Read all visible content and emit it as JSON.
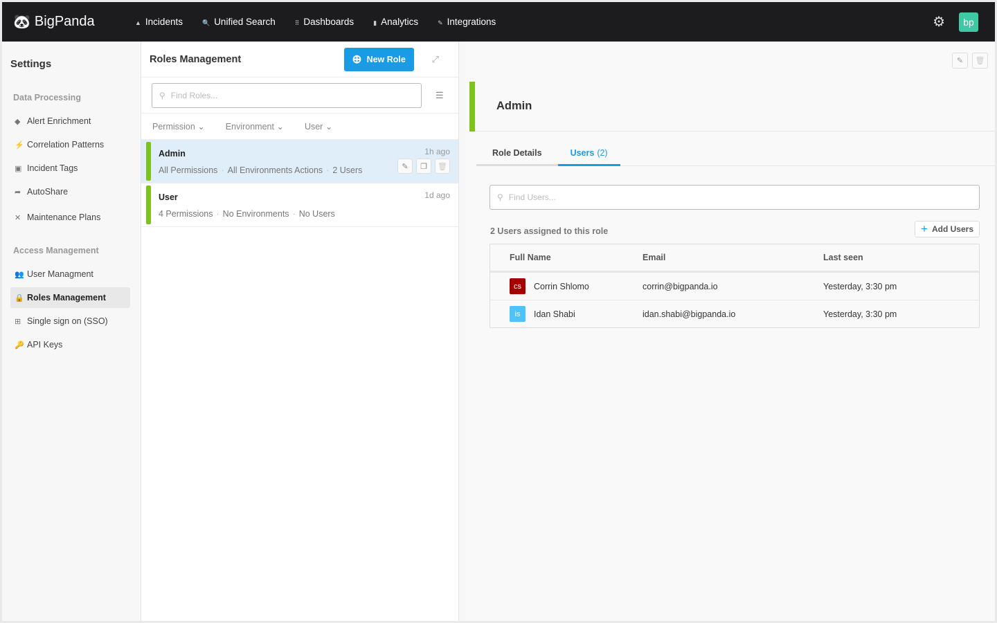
{
  "app": {
    "brand": "BigPanda",
    "avatar": "bp",
    "avatar_color": "#3cc9a3"
  },
  "nav": [
    {
      "label": "Incidents",
      "icon": "triangle-icon"
    },
    {
      "label": "Unified Search",
      "icon": "search-icon"
    },
    {
      "label": "Dashboards",
      "icon": "grid-icon"
    },
    {
      "label": "Analytics",
      "icon": "bar-chart-icon"
    },
    {
      "label": "Integrations",
      "icon": "plug-icon"
    }
  ],
  "sidebar": {
    "title": "Settings",
    "sections": [
      {
        "label": "Data Processing",
        "items": [
          {
            "label": "Alert Enrichment",
            "icon": "tag-icon"
          },
          {
            "label": "Correlation Patterns",
            "icon": "bolt-icon"
          },
          {
            "label": "Incident Tags",
            "icon": "square-icon"
          },
          {
            "label": "AutoShare",
            "icon": "share-icon"
          },
          {
            "label": "Maintenance Plans",
            "icon": "tools-icon"
          }
        ]
      },
      {
        "label": "Access Management",
        "items": [
          {
            "label": "User Managment",
            "icon": "users-icon"
          },
          {
            "label": "Roles Management",
            "icon": "lock-icon",
            "active": true
          },
          {
            "label": "Single sign on (SSO)",
            "icon": "sign-in-icon"
          },
          {
            "label": "API Keys",
            "icon": "key-icon"
          }
        ]
      }
    ]
  },
  "roles": {
    "title": "Roles Management",
    "new_label": "New Role",
    "search_placeholder": "Find Roles...",
    "filters": [
      "Permission",
      "Environment",
      "User"
    ],
    "items": [
      {
        "name": "Admin",
        "time": "1h ago",
        "meta": [
          "All Permissions",
          "All Environments Actions",
          "2 Users"
        ]
      },
      {
        "name": "User",
        "time": "1d ago",
        "meta": [
          "4 Permissions",
          "No Environments",
          "No Users"
        ]
      }
    ]
  },
  "detail": {
    "title": "Admin",
    "tabs": {
      "details": "Role Details",
      "users": "Users",
      "users_count": "(2)"
    },
    "search_placeholder": "Find Users...",
    "assigned": "2 Users assigned to this role",
    "add_label": "Add Users",
    "columns": [
      "Full Name",
      "Email",
      "Last seen"
    ],
    "users": [
      {
        "initials": "cs",
        "color": "#a50000",
        "name": "Corrin Shlomo",
        "email": "corrin@bigpanda.io",
        "last_seen": "Yesterday, 3:30 pm"
      },
      {
        "initials": "is",
        "color": "#4fc3f7",
        "name": "Idan Shabi",
        "email": "idan.shabi@bigpanda.io",
        "last_seen": "Yesterday, 3:30 pm"
      }
    ]
  },
  "colors": {
    "accent": "#1a9be6",
    "role_bar": "#7ec21d",
    "header": "#1c1c1e"
  }
}
